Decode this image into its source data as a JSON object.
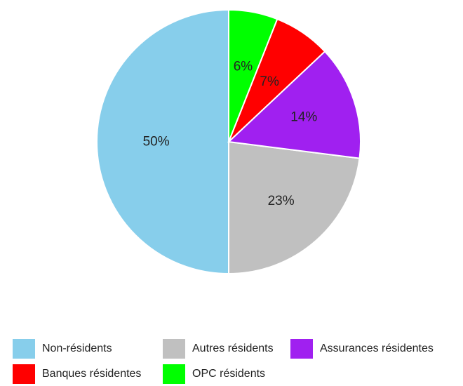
{
  "chart_data": {
    "type": "pie",
    "categories": [
      "Non-résidents",
      "Autres résidents",
      "Assurances résidentes",
      "Banques résidentes",
      "OPC résidents"
    ],
    "values": [
      50,
      23,
      14,
      7,
      6
    ],
    "labels": [
      "50%",
      "23%",
      "14%",
      "7%",
      "6%"
    ],
    "colors": [
      "#87CEEB",
      "#C0C0C0",
      "#A020F0",
      "#FF0000",
      "#00FF00"
    ],
    "start": "top",
    "direction": "counterclockwise",
    "legend_position": "bottom"
  }
}
